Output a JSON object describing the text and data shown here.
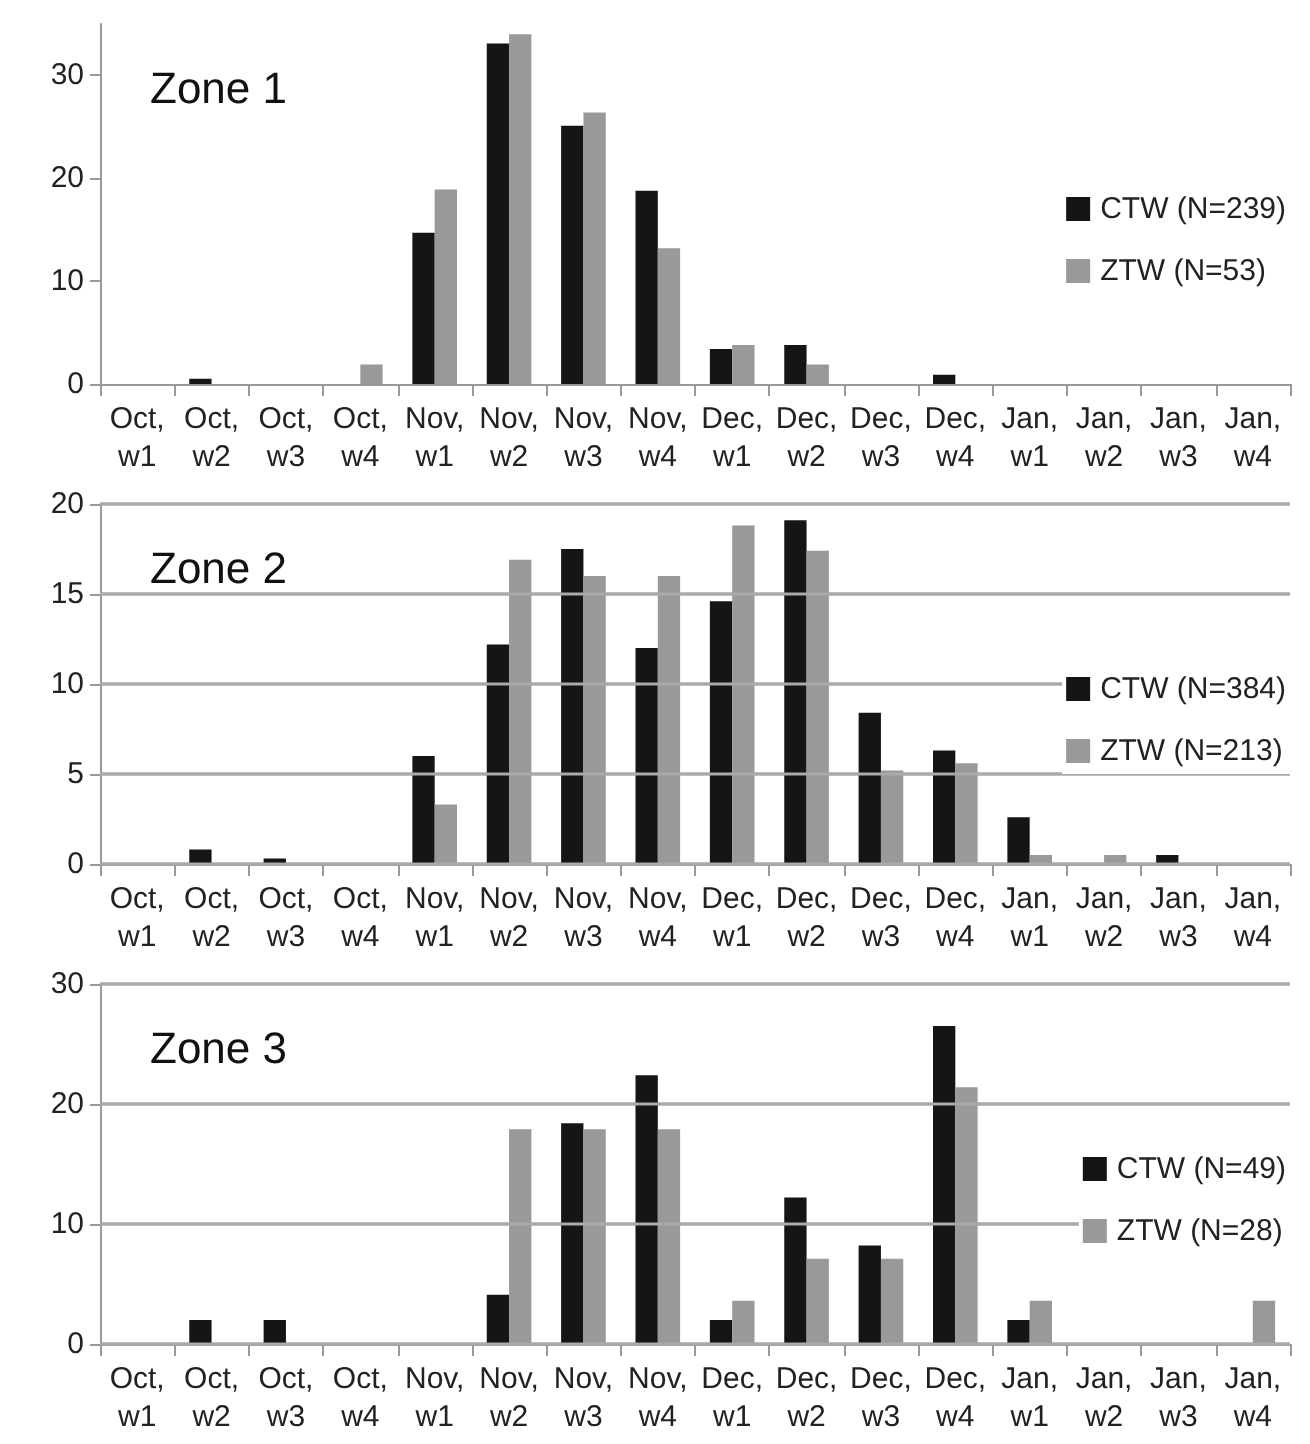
{
  "chart_data": [
    {
      "type": "bar",
      "title": "Zone 1",
      "categories": [
        "Oct,\nw1",
        "Oct,\nw2",
        "Oct,\nw3",
        "Oct,\nw4",
        "Nov,\nw1",
        "Nov,\nw2",
        "Nov,\nw3",
        "Nov,\nw4",
        "Dec,\nw1",
        "Dec,\nw2",
        "Dec,\nw3",
        "Dec,\nw4",
        "Jan,\nw1",
        "Jan,\nw2",
        "Jan,\nw3",
        "Jan,\nw4"
      ],
      "series": [
        {
          "name": "CTW (N=239)",
          "color": "#151515",
          "values": [
            0,
            0.5,
            0,
            0,
            14.7,
            33.1,
            25.1,
            18.8,
            3.4,
            3.8,
            0,
            0.9,
            0,
            0,
            0,
            0
          ]
        },
        {
          "name": "ZTW (N=53)",
          "color": "#999999",
          "values": [
            0,
            0,
            0,
            1.9,
            18.9,
            34,
            26.4,
            13.2,
            3.8,
            1.9,
            0,
            0,
            0,
            0,
            0,
            0
          ]
        }
      ],
      "ylim": [
        0,
        35
      ],
      "yticks": [
        0,
        10,
        20,
        30
      ],
      "grid": false,
      "legend": "right"
    },
    {
      "type": "bar",
      "title": "Zone 2",
      "categories": [
        "Oct,\nw1",
        "Oct,\nw2",
        "Oct,\nw3",
        "Oct,\nw4",
        "Nov,\nw1",
        "Nov,\nw2",
        "Nov,\nw3",
        "Nov,\nw4",
        "Dec,\nw1",
        "Dec,\nw2",
        "Dec,\nw3",
        "Dec,\nw4",
        "Jan,\nw1",
        "Jan,\nw2",
        "Jan,\nw3",
        "Jan,\nw4"
      ],
      "series": [
        {
          "name": "CTW (N=384)",
          "color": "#151515",
          "values": [
            0,
            0.8,
            0.3,
            0,
            6.0,
            12.2,
            17.5,
            12.0,
            14.6,
            19.1,
            8.4,
            6.3,
            2.6,
            0,
            0.5,
            0
          ]
        },
        {
          "name": "ZTW (N=213)",
          "color": "#999999",
          "values": [
            0,
            0,
            0,
            0,
            3.3,
            16.9,
            16.0,
            16.0,
            18.8,
            17.4,
            5.2,
            5.6,
            0.5,
            0.5,
            0,
            0
          ]
        }
      ],
      "ylim": [
        0,
        20
      ],
      "yticks": [
        0,
        5,
        10,
        15,
        20
      ],
      "grid": "y",
      "legend": "right"
    },
    {
      "type": "bar",
      "title": "Zone 3",
      "categories": [
        "Oct,\nw1",
        "Oct,\nw2",
        "Oct,\nw3",
        "Oct,\nw4",
        "Nov,\nw1",
        "Nov,\nw2",
        "Nov,\nw3",
        "Nov,\nw4",
        "Dec,\nw1",
        "Dec,\nw2",
        "Dec,\nw3",
        "Dec,\nw4",
        "Jan,\nw1",
        "Jan,\nw2",
        "Jan,\nw3",
        "Jan,\nw4"
      ],
      "series": [
        {
          "name": "CTW (N=49)",
          "color": "#151515",
          "values": [
            0,
            2.0,
            2.0,
            0,
            0,
            4.1,
            18.4,
            22.4,
            2.0,
            12.2,
            8.2,
            26.5,
            2.0,
            0,
            0,
            0
          ]
        },
        {
          "name": "ZTW (N=28)",
          "color": "#999999",
          "values": [
            0,
            0,
            0,
            0,
            0,
            17.9,
            17.9,
            17.9,
            3.6,
            7.1,
            7.1,
            21.4,
            3.6,
            0,
            0,
            3.6
          ]
        }
      ],
      "ylim": [
        0,
        30
      ],
      "yticks": [
        0,
        10,
        20,
        30
      ],
      "grid": "y",
      "legend": "right"
    }
  ]
}
